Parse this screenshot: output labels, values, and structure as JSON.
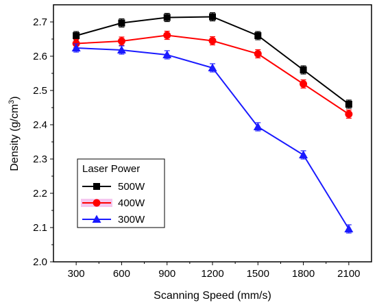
{
  "chart_data": {
    "type": "line",
    "title": "",
    "xlabel": "Scanning Speed (mm/s)",
    "ylabel_main": "Density (g/cm",
    "ylabel_sup": "3",
    "ylabel_close": ")",
    "x": [
      300,
      600,
      900,
      1200,
      1500,
      1800,
      2100
    ],
    "xlim": [
      150,
      2250
    ],
    "ylim": [
      2.0,
      2.75
    ],
    "xticks": [
      "300",
      "600",
      "900",
      "1200",
      "1500",
      "1800",
      "2100"
    ],
    "yticks": [
      "2.0",
      "2.1",
      "2.2",
      "2.3",
      "2.4",
      "2.5",
      "2.6",
      "2.7"
    ],
    "grid": false,
    "legend": {
      "title": "Laser Power",
      "placement": "bottom-left"
    },
    "series": [
      {
        "name": "500W",
        "marker": "square",
        "color": "#000000",
        "values": [
          2.66,
          2.697,
          2.713,
          2.715,
          2.66,
          2.56,
          2.46
        ],
        "errors": [
          0.012,
          0.012,
          0.012,
          0.012,
          0.012,
          0.012,
          0.012
        ]
      },
      {
        "name": "400W",
        "marker": "circle",
        "color": "#ff0000",
        "values": [
          2.637,
          2.644,
          2.661,
          2.645,
          2.607,
          2.519,
          2.431
        ],
        "errors": [
          0.012,
          0.012,
          0.012,
          0.012,
          0.012,
          0.012,
          0.012
        ]
      },
      {
        "name": "300W",
        "marker": "triangle",
        "color": "#1a1aff",
        "values": [
          2.624,
          2.618,
          2.604,
          2.566,
          2.394,
          2.312,
          2.096
        ],
        "errors": [
          0.012,
          0.012,
          0.012,
          0.012,
          0.012,
          0.012,
          0.012
        ]
      }
    ]
  }
}
